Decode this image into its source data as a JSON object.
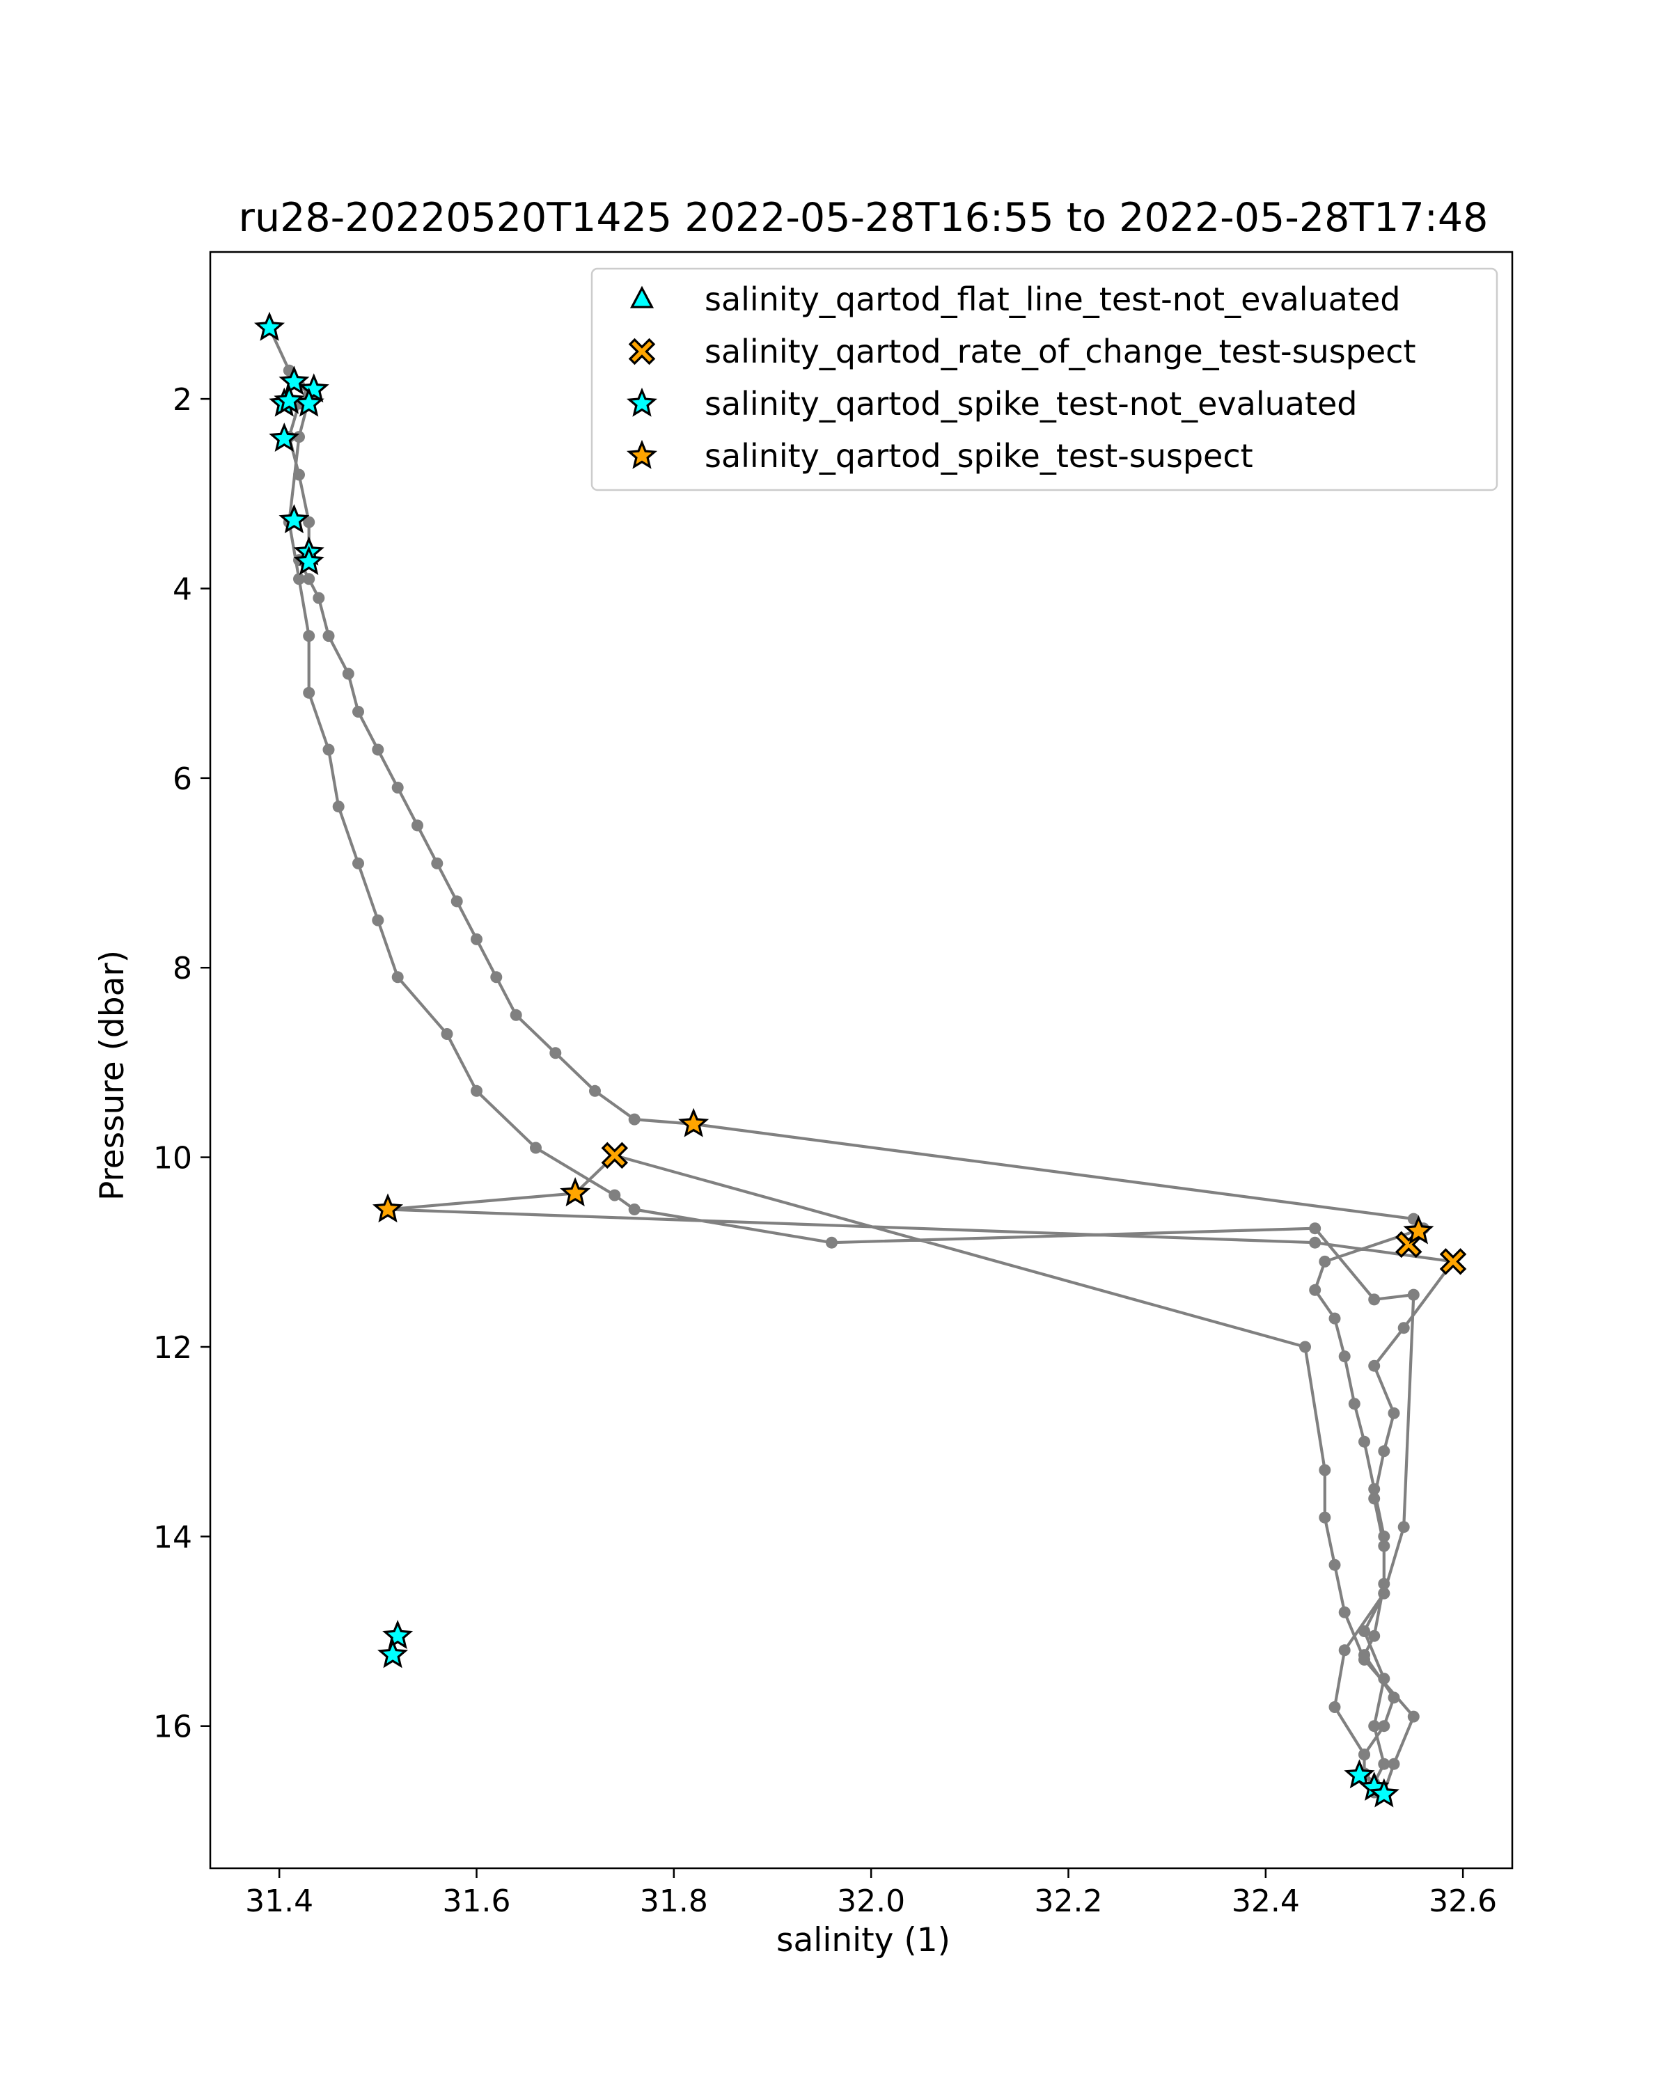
{
  "chart_data": {
    "type": "scatter",
    "title": "ru28-20220520T1425 2022-05-28T16:55 to 2022-05-28T17:48",
    "xlabel": "salinity (1)",
    "ylabel": "Pressure (dbar)",
    "xlim": [
      31.33,
      32.65
    ],
    "ylim": [
      17.5,
      0.45
    ],
    "y_inverted": true,
    "grid": false,
    "legend_placement": "top-right",
    "x_ticks": [
      "31.4",
      "31.6",
      "31.8",
      "32.0",
      "32.2",
      "32.4",
      "32.6"
    ],
    "x_tick_values": [
      31.4,
      31.6,
      31.8,
      32.0,
      32.2,
      32.4,
      32.6
    ],
    "y_ticks": [
      "2",
      "4",
      "6",
      "8",
      "10",
      "12",
      "14",
      "16"
    ],
    "y_tick_values": [
      2,
      4,
      6,
      8,
      10,
      12,
      14,
      16
    ],
    "colors": {
      "profile_line": "#808080",
      "not_evaluated": "#00ffff",
      "suspect": "#ffa500",
      "marker_edge": "#000000"
    },
    "profile": {
      "name": "",
      "x": [
        31.39,
        31.41,
        31.42,
        31.43,
        31.42,
        31.41,
        31.42,
        31.43,
        31.43,
        31.42,
        31.43,
        31.44,
        31.45,
        31.47,
        31.48,
        31.5,
        31.52,
        31.54,
        31.56,
        31.58,
        31.6,
        31.62,
        31.64,
        31.68,
        31.72,
        31.76,
        31.82,
        32.55,
        32.56,
        32.46,
        32.45,
        32.47,
        32.48,
        32.49,
        32.5,
        32.51,
        32.52,
        32.52,
        32.51,
        32.5,
        32.53,
        32.52,
        32.5,
        32.5,
        32.51,
        32.51,
        32.52,
        32.53,
        32.55,
        32.5,
        32.48,
        32.47,
        32.46,
        32.46,
        32.44,
        31.74,
        31.7,
        31.51,
        32.45,
        32.59,
        32.54,
        32.51,
        32.53,
        32.52,
        32.51,
        32.52,
        32.52,
        32.5,
        32.52,
        32.51,
        32.52,
        32.51,
        32.5,
        32.5,
        32.47,
        32.48,
        32.52,
        32.54,
        32.55,
        32.51,
        32.45,
        31.96,
        31.76,
        31.74,
        31.66,
        31.6,
        31.57,
        31.52,
        31.5,
        31.48,
        31.46,
        31.45,
        31.43,
        31.43,
        31.42,
        31.41,
        31.42,
        31.43
      ],
      "y": [
        1.25,
        1.7,
        1.85,
        1.95,
        2.05,
        2.4,
        2.8,
        3.3,
        3.6,
        3.7,
        3.9,
        4.1,
        4.5,
        4.9,
        5.3,
        5.7,
        6.1,
        6.5,
        6.9,
        7.3,
        7.7,
        8.1,
        8.5,
        8.9,
        9.3,
        9.6,
        9.65,
        10.65,
        10.75,
        11.1,
        11.4,
        11.7,
        12.1,
        12.6,
        13.0,
        13.5,
        14.0,
        14.5,
        15.05,
        15.25,
        15.7,
        16.0,
        16.3,
        16.5,
        16.65,
        16.7,
        16.7,
        16.4,
        15.9,
        15.3,
        14.8,
        14.3,
        13.8,
        13.3,
        12.0,
        9.98,
        10.38,
        10.55,
        10.9,
        11.1,
        11.8,
        12.2,
        12.7,
        13.1,
        13.6,
        14.1,
        14.6,
        15.0,
        15.5,
        16.0,
        16.4,
        16.6,
        16.5,
        16.3,
        15.8,
        15.2,
        14.6,
        13.9,
        11.45,
        11.5,
        10.75,
        10.9,
        10.55,
        10.4,
        9.9,
        9.3,
        8.7,
        8.1,
        7.5,
        6.9,
        6.3,
        5.7,
        5.1,
        4.5,
        3.9,
        3.3,
        2.4,
        2.0
      ]
    },
    "series": [
      {
        "name": "salinity_qartod_flat_line_test-not_evaluated",
        "marker": "triangle",
        "color": "#00ffff",
        "x": [],
        "y": []
      },
      {
        "name": "salinity_qartod_rate_of_change_test-suspect",
        "marker": "x",
        "color": "#ffa500",
        "x": [
          31.74,
          32.545,
          32.59
        ],
        "y": [
          9.98,
          10.92,
          11.1
        ]
      },
      {
        "name": "salinity_qartod_spike_test-not_evaluated",
        "marker": "star",
        "color": "#00ffff",
        "x": [
          31.39,
          31.415,
          31.435,
          31.43,
          31.405,
          31.41,
          31.405,
          31.415,
          31.43,
          31.43,
          31.52,
          31.515,
          32.495,
          32.51,
          32.52
        ],
        "y": [
          1.25,
          1.82,
          1.9,
          2.05,
          2.05,
          2.02,
          2.42,
          3.28,
          3.62,
          3.72,
          15.05,
          15.25,
          16.52,
          16.65,
          16.72
        ]
      },
      {
        "name": "salinity_qartod_spike_test-suspect",
        "marker": "star",
        "color": "#ffa500",
        "x": [
          31.82,
          31.7,
          31.51,
          32.555
        ],
        "y": [
          9.65,
          10.38,
          10.55,
          10.78
        ]
      }
    ]
  }
}
